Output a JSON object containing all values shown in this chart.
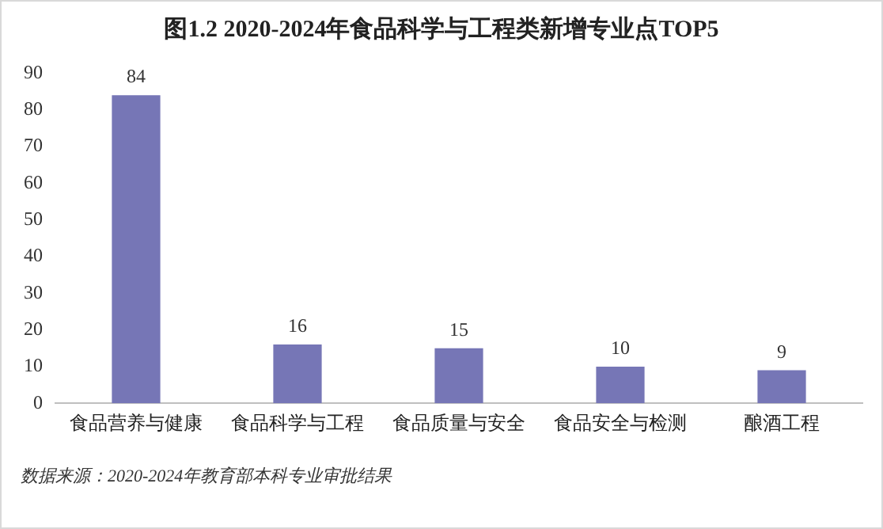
{
  "chart_data": {
    "type": "bar",
    "title": "图1.2  2020-2024年食品科学与工程类新增专业点TOP5",
    "categories": [
      "食品营养与健康",
      "食品科学与工程",
      "食品质量与安全",
      "食品安全与检测",
      "酿酒工程"
    ],
    "values": [
      84,
      16,
      15,
      10,
      9
    ],
    "color": "#7676b6",
    "ylim": [
      0,
      90
    ],
    "yticks": [
      0,
      10,
      20,
      30,
      40,
      50,
      60,
      70,
      80,
      90
    ],
    "grid": false,
    "legend": false,
    "data_labels": true,
    "annotations": [
      "数据来源：2020-2024年教育部本科专业审批结果"
    ]
  }
}
